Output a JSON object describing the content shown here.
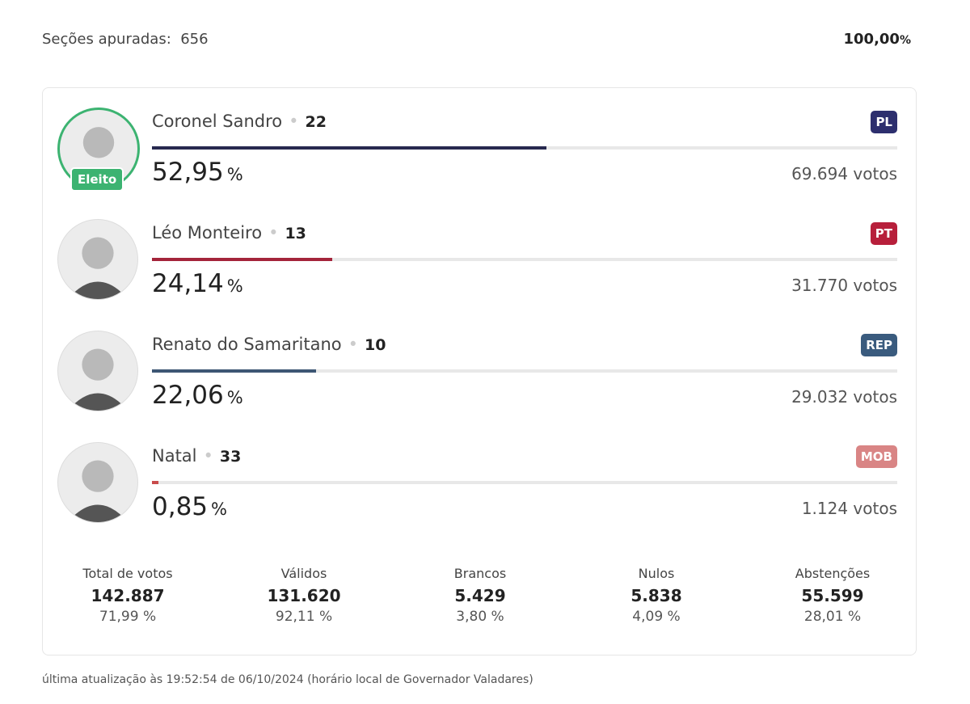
{
  "header": {
    "sections_label": "Seções apuradas:",
    "sections": "656",
    "progress": "100,00",
    "progress_unit": "%"
  },
  "percent_unit": "%",
  "winner_badge": "Eleito",
  "xlim": [
    0,
    100
  ],
  "candidates": [
    {
      "name": "Coronel Sandro",
      "number": "22",
      "party": "PL",
      "party_color": "#2d2f6e",
      "bar_color": "#27294f",
      "percent": {
        "value": 52.95,
        "label": "52,95"
      },
      "votes": "69.694 votos",
      "elected": true
    },
    {
      "name": "Léo Monteiro",
      "number": "13",
      "party": "PT",
      "party_color": "#b71f3b",
      "bar_color": "#a4243b",
      "percent": {
        "value": 24.14,
        "label": "24,14"
      },
      "votes": "31.770 votos",
      "elected": false
    },
    {
      "name": "Renato do Samaritano",
      "number": "10",
      "party": "REP",
      "party_color": "#3a5b7e",
      "bar_color": "#3d5674",
      "percent": {
        "value": 22.06,
        "label": "22,06"
      },
      "votes": "29.032 votos",
      "elected": false
    },
    {
      "name": "Natal",
      "number": "33",
      "party": "MOB",
      "party_color": "#d98585",
      "bar_color": "#c84b4b",
      "percent": {
        "value": 0.85,
        "label": "0,85"
      },
      "votes": "1.124 votos",
      "elected": false
    }
  ],
  "stats": [
    {
      "label": "Total de votos",
      "value": "142.887",
      "percent": "71,99 %"
    },
    {
      "label": "Válidos",
      "value": "131.620",
      "percent": "92,11 %"
    },
    {
      "label": "Brancos",
      "value": "5.429",
      "percent": "3,80 %"
    },
    {
      "label": "Nulos",
      "value": "5.838",
      "percent": "4,09 %"
    },
    {
      "label": "Abstenções",
      "value": "55.599",
      "percent": "28,01 %"
    }
  ],
  "footer": "última atualização às 19:52:54 de 06/10/2024 (horário local de Governador Valadares)"
}
